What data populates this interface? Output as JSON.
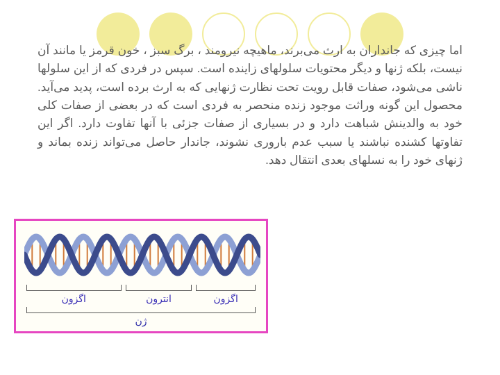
{
  "decor": {
    "circles": [
      {
        "kind": "solid"
      },
      {
        "kind": "outline"
      },
      {
        "kind": "outline"
      },
      {
        "kind": "outline"
      },
      {
        "kind": "solid"
      },
      {
        "kind": "solid"
      }
    ],
    "solid_color": "#f2ec9a",
    "outline_color": "#f2ec9a"
  },
  "paragraph": "اما چیزی که جانداران به ارث می‌برند، ماهیچه نیرومند ، برگ سبز ، خون قرمز یا مانند آن نیست، بلکه ژنها و دیگر محتویات سلولهای زاینده است. سپس در فردی که از این سلولها ناشی می‌شود، صفات قابل رویت تحت نظارت ژنهایی که به ارث برده است، پدید می‌آید. محصول این گونه وراثت موجود زنده منحصر به فردی است که در بعضی از صفات کلی خود به والدینش شباهت دارد و در بسیاری از صفات جزئی با آنها تفاوت دارد. اگر این تفاوتها کشنده نباشند یا سبب عدم باروری نشوند، جاندار حاصل می‌تواند زنده بماند و ژنهای خود را به نسلهای بعدی انتقال دهد.",
  "figure": {
    "border_color": "#e646c1",
    "bg_color": "#fffef7",
    "dna": {
      "strand_a_color": "#3c4b8c",
      "strand_b_color": "#8da0d4",
      "rung_color": "#d07a3a",
      "turns": 5
    },
    "segments": [
      {
        "label": "اگزون",
        "flex": 1.4
      },
      {
        "label": "انترون",
        "flex": 1.0
      },
      {
        "label": "اگزون",
        "flex": 0.9
      }
    ],
    "gene_label": "ژن",
    "label_color": "#372cb5"
  }
}
